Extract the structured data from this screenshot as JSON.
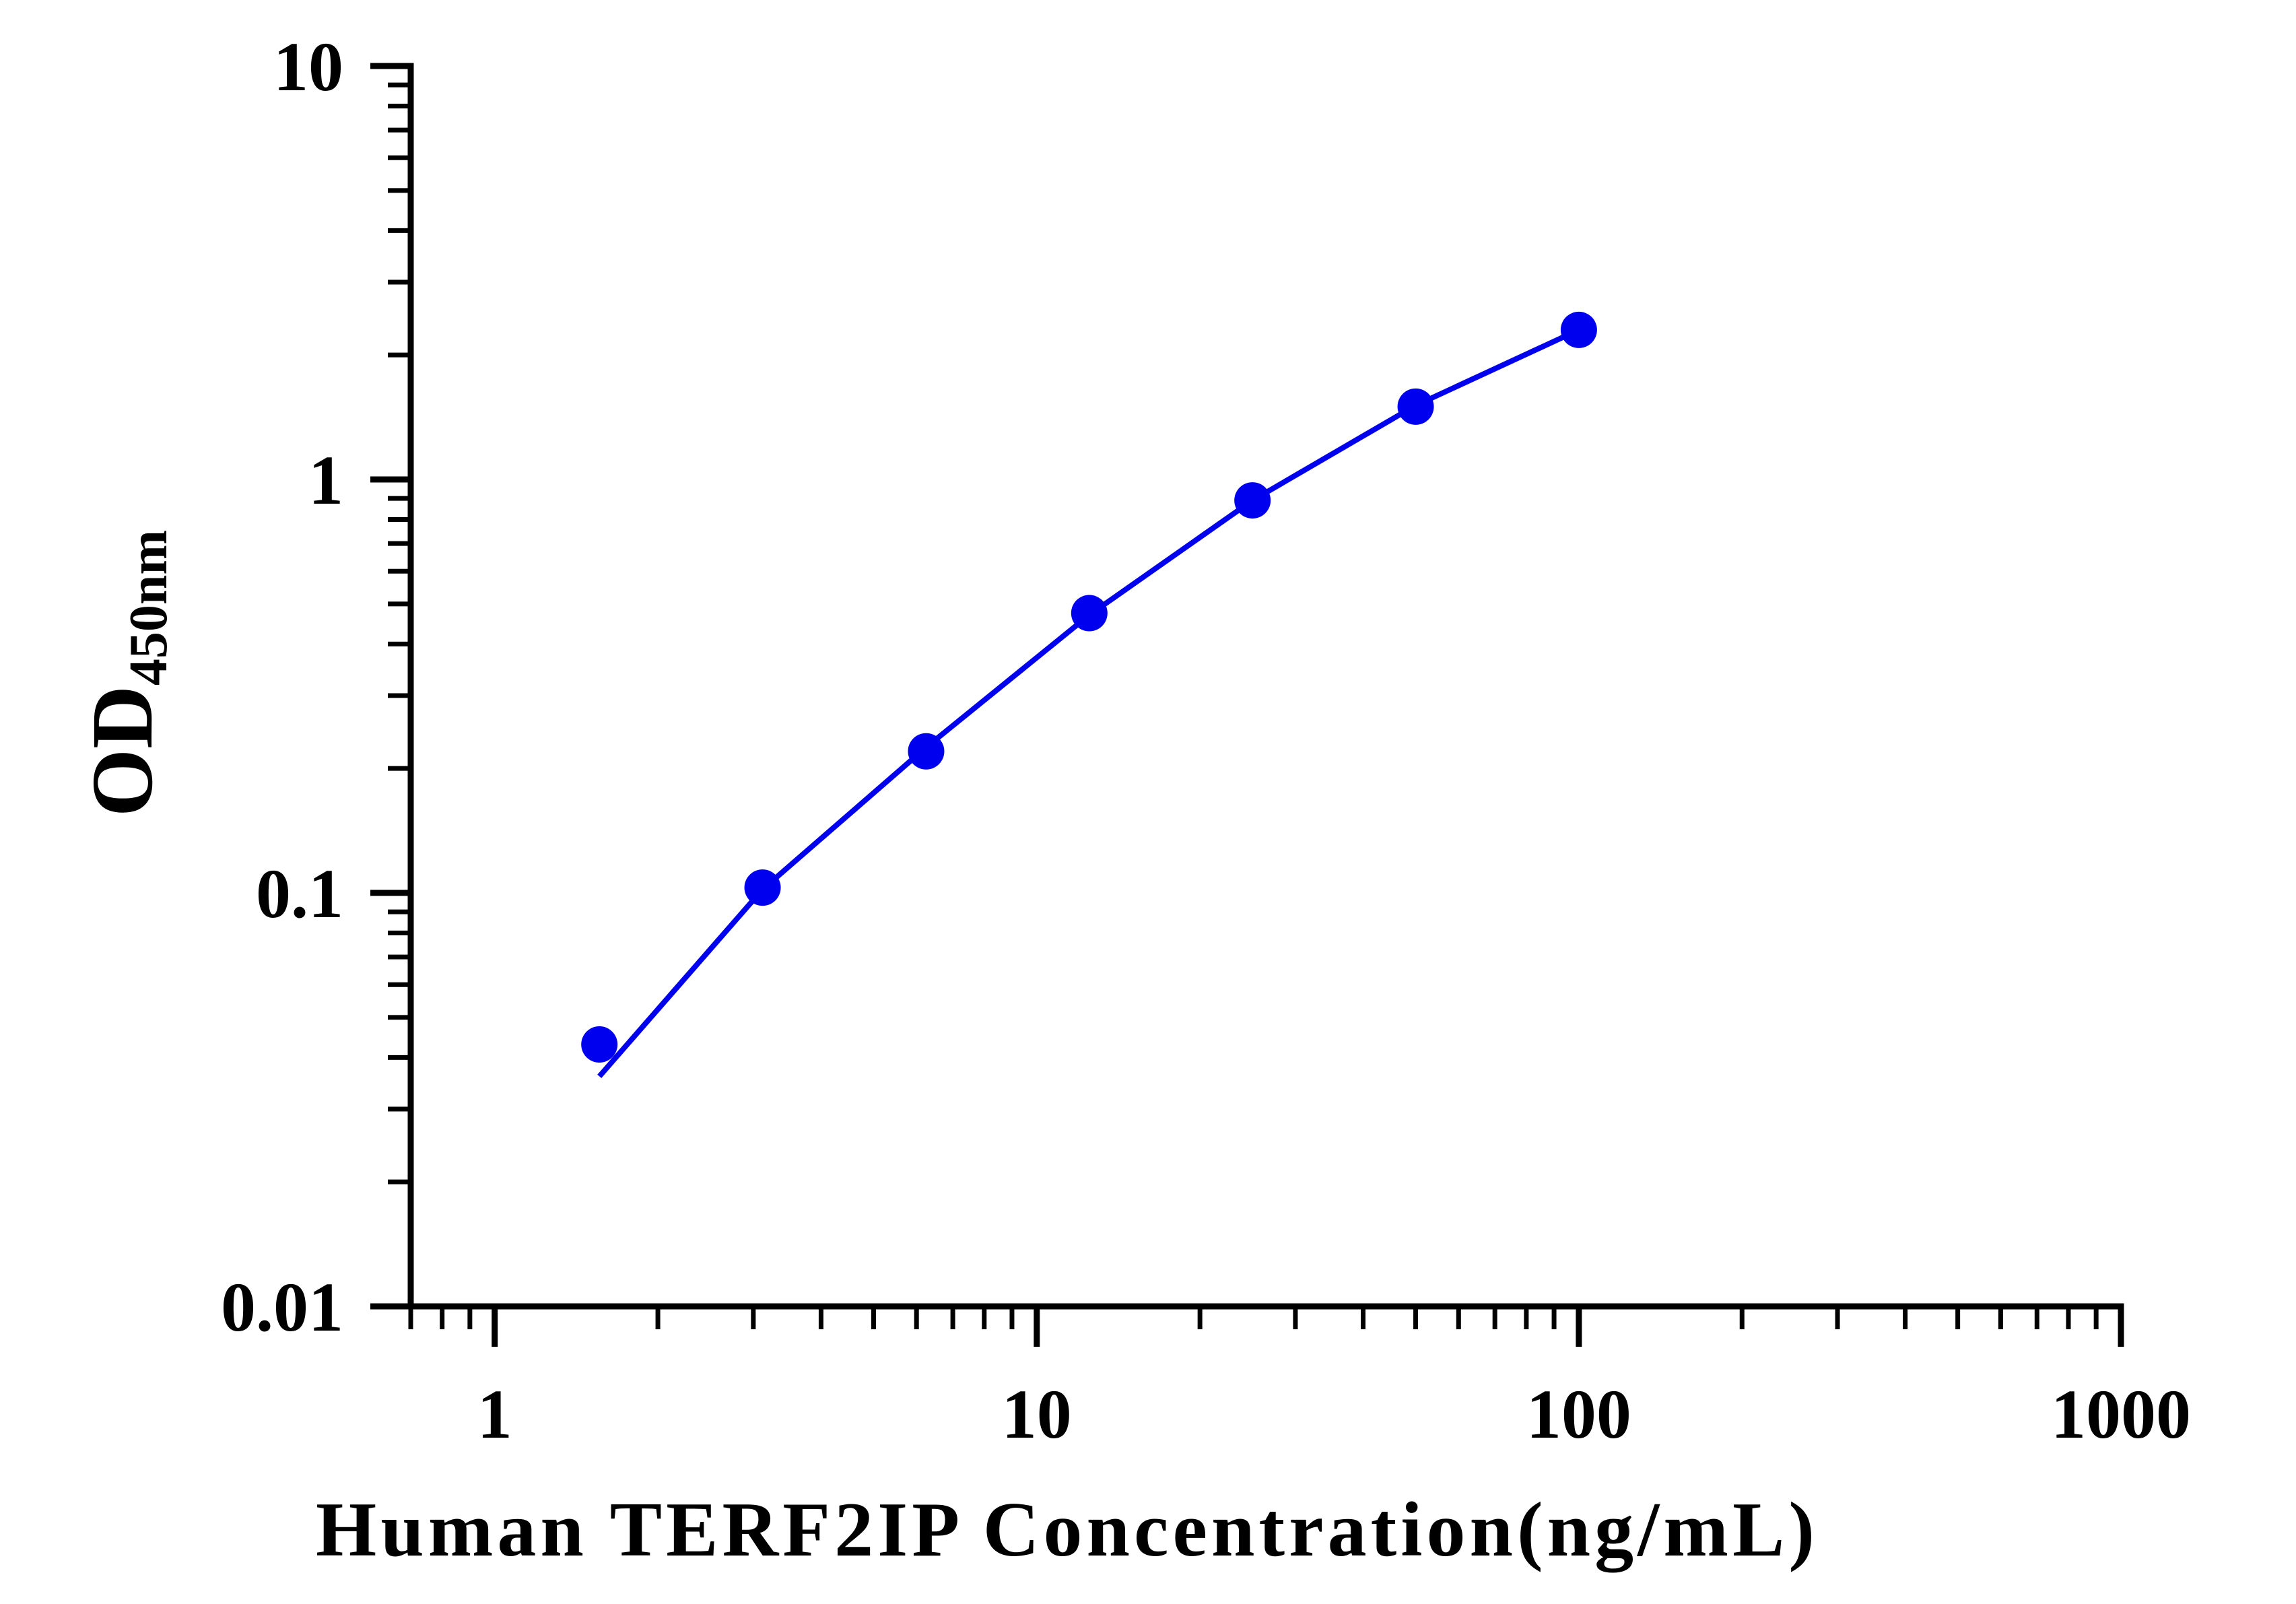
{
  "chart_data": {
    "type": "line",
    "xlabel": "Human TERF2IP Concentration(ng/mL)",
    "ylabel": {
      "main": "OD",
      "subscript": "450nm"
    },
    "x_scale": "log",
    "y_scale": "log",
    "xlim": [
      0.7,
      1000
    ],
    "ylim": [
      0.01,
      10
    ],
    "x_ticks": [
      {
        "value": 1,
        "label": "1"
      },
      {
        "value": 10,
        "label": "10"
      },
      {
        "value": 100,
        "label": "100"
      },
      {
        "value": 1000,
        "label": "1000"
      }
    ],
    "y_ticks": [
      {
        "value": 0.01,
        "label": "0.01"
      },
      {
        "value": 0.1,
        "label": "0.1"
      },
      {
        "value": 1,
        "label": "1"
      },
      {
        "value": 10,
        "label": "10"
      }
    ],
    "grid": false,
    "legend": "none",
    "series": [
      {
        "color": "#0000ee",
        "points": [
          {
            "x": 1.56,
            "y": 0.043
          },
          {
            "x": 3.12,
            "y": 0.103
          },
          {
            "x": 6.25,
            "y": 0.22
          },
          {
            "x": 12.5,
            "y": 0.475
          },
          {
            "x": 25,
            "y": 0.89
          },
          {
            "x": 50,
            "y": 1.5
          },
          {
            "x": 100,
            "y": 2.3
          }
        ],
        "fit_curve": [
          {
            "x": 1.56,
            "y": 0.036
          },
          {
            "x": 3.12,
            "y": 0.102
          },
          {
            "x": 6.25,
            "y": 0.225
          },
          {
            "x": 12.5,
            "y": 0.47
          },
          {
            "x": 25,
            "y": 0.89
          },
          {
            "x": 50,
            "y": 1.51
          },
          {
            "x": 100,
            "y": 2.3
          }
        ]
      }
    ]
  }
}
